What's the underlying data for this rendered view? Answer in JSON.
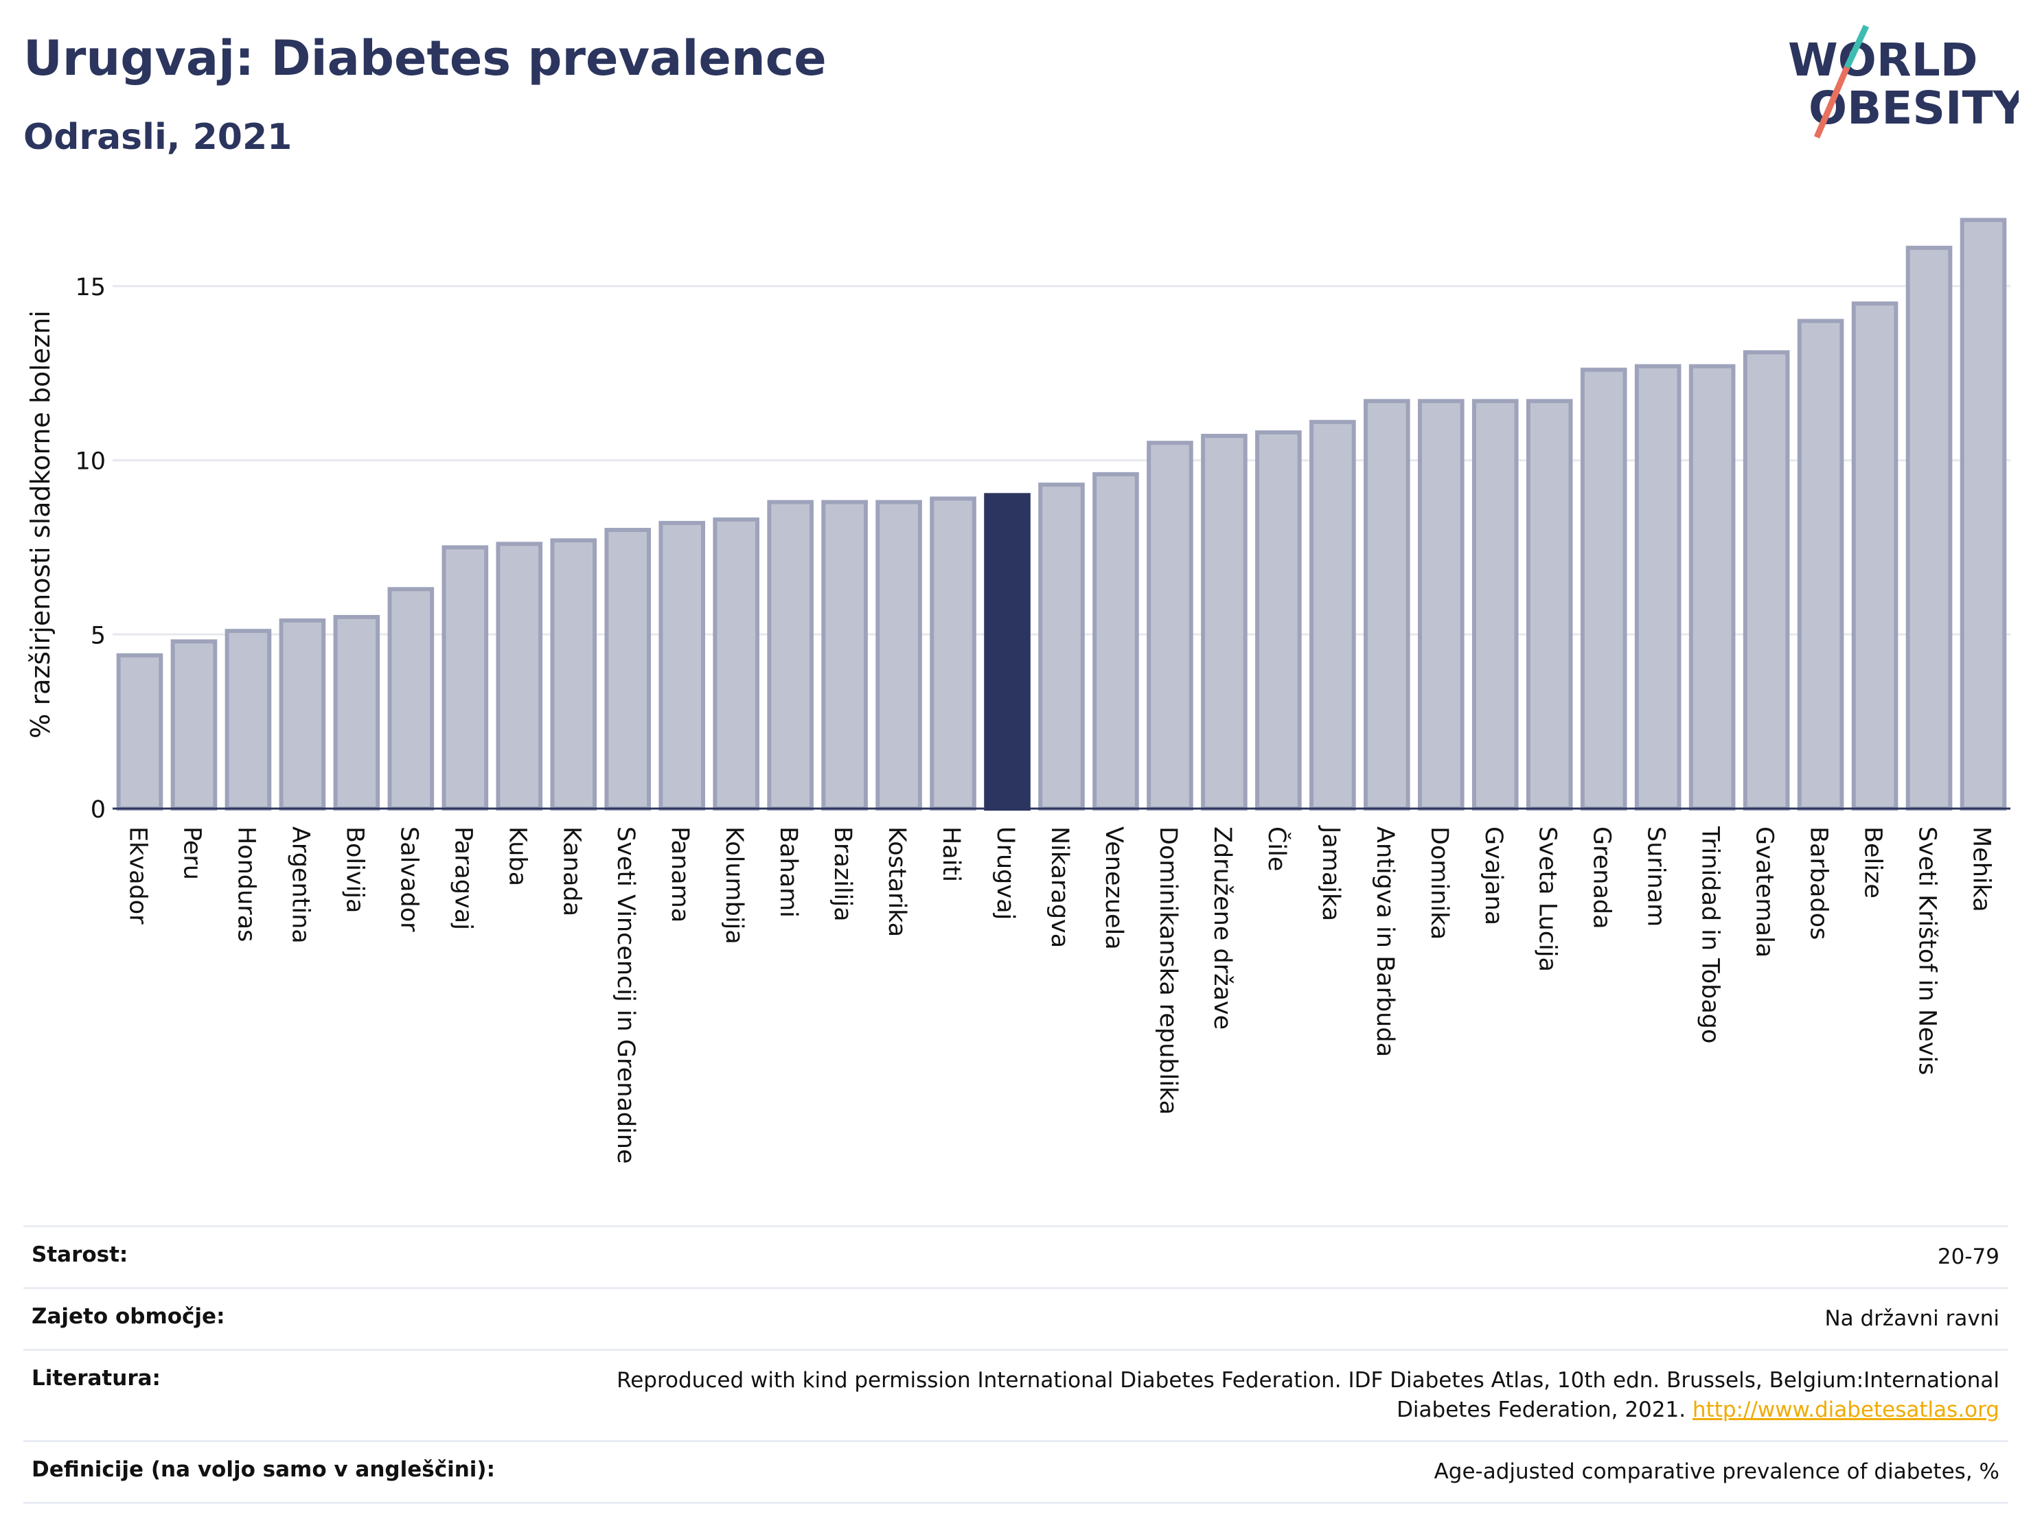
{
  "header": {
    "title": "Urugvaj: Diabetes prevalence",
    "subtitle": "Odrasli, 2021"
  },
  "logo": {
    "line1": "WORLD",
    "line2": "OBESITY",
    "accent_color": "#3dbcb0",
    "slash_color": "#e8705e",
    "text_color": "#2b355e"
  },
  "chart_data": {
    "type": "bar",
    "ylabel": "% razširjenosti sladkorne bolezni",
    "xlabel": "",
    "ylim": [
      0,
      17.5
    ],
    "yticks": [
      0,
      5,
      10,
      15
    ],
    "grid": true,
    "highlight": "Urugvaj",
    "highlight_color": "#2b3560",
    "bar_color": "#bfc3d1",
    "bar_edge_color": "#9ea3bb",
    "categories": [
      "Ekvador",
      "Peru",
      "Honduras",
      "Argentina",
      "Bolivija",
      "Salvador",
      "Paragvaj",
      "Kuba",
      "Kanada",
      "Sveti Vincencij in Grenadine",
      "Panama",
      "Kolumbija",
      "Bahami",
      "Brazilija",
      "Kostarika",
      "Haiti",
      "Urugvaj",
      "Nikaragva",
      "Venezuela",
      "Dominikanska republika",
      "Združene države",
      "Čile",
      "Jamajka",
      "Antigva in Barbuda",
      "Dominika",
      "Gvajana",
      "Sveta Lucija",
      "Grenada",
      "Surinam",
      "Trinidad in Tobago",
      "Gvatemala",
      "Barbados",
      "Belize",
      "Sveti Krištof in Nevis",
      "Mehika"
    ],
    "values": [
      4.4,
      4.8,
      5.1,
      5.4,
      5.5,
      6.3,
      7.5,
      7.6,
      7.7,
      8.0,
      8.2,
      8.3,
      8.8,
      8.8,
      8.8,
      8.9,
      9.0,
      9.3,
      9.6,
      10.5,
      10.7,
      10.8,
      11.1,
      11.7,
      11.7,
      11.7,
      11.7,
      12.6,
      12.7,
      12.7,
      13.1,
      14.0,
      14.5,
      16.1,
      16.9
    ]
  },
  "meta": {
    "age_label": "Starost:",
    "age_value": "20-79",
    "coverage_label": "Zajeto območje:",
    "coverage_value": "Na državni ravni",
    "reference_label": "Literatura:",
    "reference_text": "Reproduced with kind permission International Diabetes Federation.  IDF Diabetes Atlas, 10th edn. Brussels, Belgium:International Diabetes Federation, 2021. ",
    "reference_link": "http://www.diabetesatlas.org",
    "definition_label": "Definicije (na voljo samo v angleščini):",
    "definition_value": "Age-adjusted comparative prevalence of diabetes, %"
  }
}
